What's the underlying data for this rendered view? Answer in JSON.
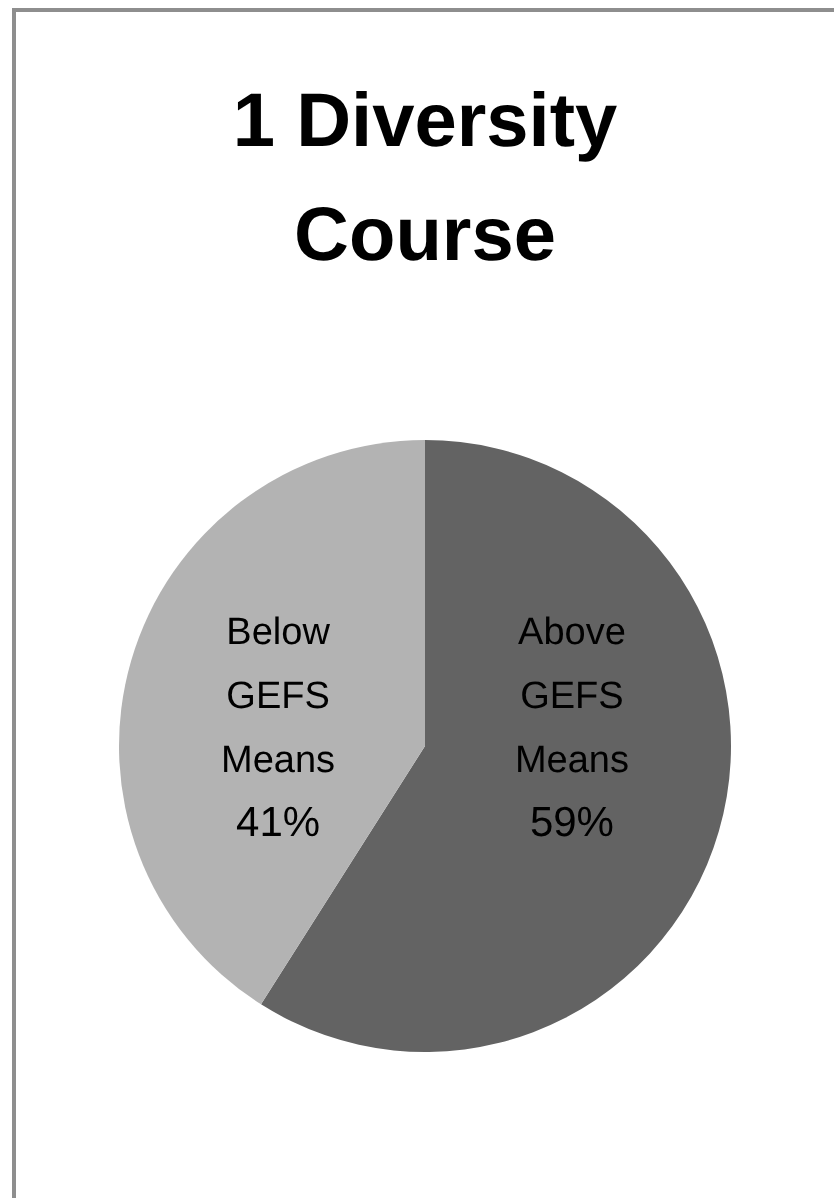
{
  "chart_data": {
    "type": "pie",
    "title": "1 Diversity Course",
    "categories": [
      "Above GEFS Means",
      "Below GEFS Means"
    ],
    "values": [
      59,
      41
    ],
    "colors": [
      "#636363",
      "#b3b3b3"
    ],
    "value_labels": [
      "59%",
      "41%"
    ]
  }
}
